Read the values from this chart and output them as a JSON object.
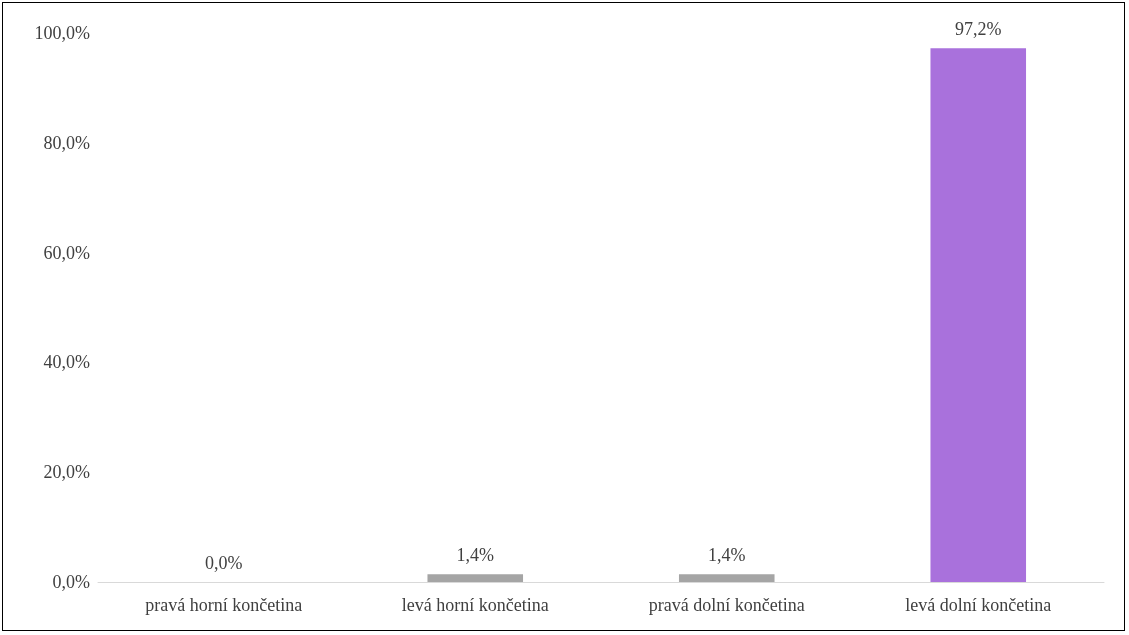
{
  "chart_data": {
    "type": "bar",
    "categories": [
      "pravá horní končetina",
      "levá horní končetina",
      "pravá dolní končetina",
      "levá dolní končetina"
    ],
    "values": [
      0.0,
      1.4,
      1.4,
      97.2
    ],
    "colors": [
      "#a5a5a5",
      "#a5a5a5",
      "#a5a5a5",
      "#a971dc"
    ],
    "value_labels": [
      "0,0%",
      "1,4%",
      "1,4%",
      "97,2%"
    ],
    "ylim": [
      0,
      100
    ],
    "yticks": [
      {
        "value": 0,
        "label": "0,0%"
      },
      {
        "value": 20,
        "label": "20,0%"
      },
      {
        "value": 40,
        "label": "40,0%"
      },
      {
        "value": 60,
        "label": "60,0%"
      },
      {
        "value": 80,
        "label": "80,0%"
      },
      {
        "value": 100,
        "label": "100,0%"
      }
    ],
    "grid": false
  }
}
